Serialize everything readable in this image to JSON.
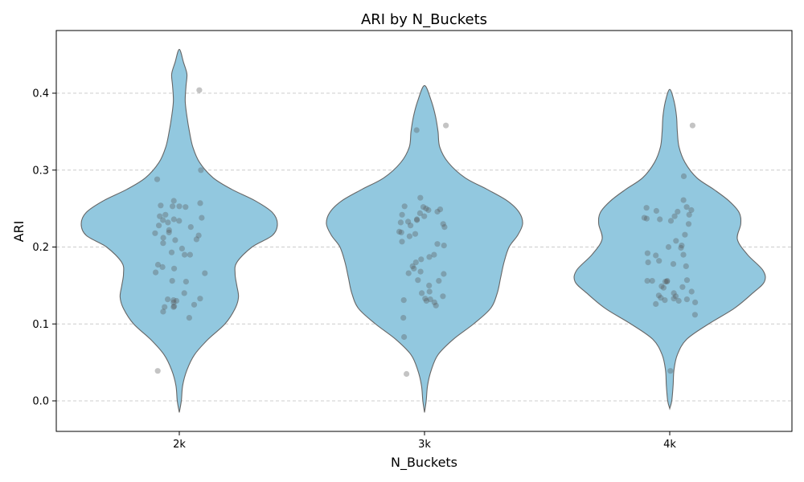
{
  "chart_data": {
    "type": "violin",
    "title": "ARI by N_Buckets",
    "xlabel": "N_Buckets",
    "ylabel": "ARI",
    "categories": [
      "2k",
      "3k",
      "4k"
    ],
    "ylim": [
      -0.04,
      0.48
    ],
    "yticks": [
      0.0,
      0.1,
      0.2,
      0.3,
      0.4
    ],
    "ytick_labels": [
      "0.0",
      "0.1",
      "0.2",
      "0.3",
      "0.4"
    ],
    "grid": "y-dashed",
    "colors": {
      "violin_fill": "#92c8df",
      "violin_edge": "#666666",
      "point": "#555555"
    },
    "violins": [
      {
        "category": "2k",
        "range": [
          -0.015,
          0.457
        ],
        "profile": [
          [
            -0.015,
            0.0
          ],
          [
            0.0,
            0.012
          ],
          [
            0.02,
            0.02
          ],
          [
            0.04,
            0.045
          ],
          [
            0.06,
            0.09
          ],
          [
            0.08,
            0.17
          ],
          [
            0.1,
            0.27
          ],
          [
            0.12,
            0.33
          ],
          [
            0.135,
            0.35
          ],
          [
            0.15,
            0.34
          ],
          [
            0.165,
            0.33
          ],
          [
            0.18,
            0.34
          ],
          [
            0.2,
            0.43
          ],
          [
            0.215,
            0.55
          ],
          [
            0.23,
            0.58
          ],
          [
            0.245,
            0.55
          ],
          [
            0.26,
            0.45
          ],
          [
            0.275,
            0.31
          ],
          [
            0.29,
            0.2
          ],
          [
            0.31,
            0.12
          ],
          [
            0.33,
            0.08
          ],
          [
            0.35,
            0.06
          ],
          [
            0.37,
            0.045
          ],
          [
            0.39,
            0.035
          ],
          [
            0.41,
            0.04
          ],
          [
            0.425,
            0.045
          ],
          [
            0.44,
            0.025
          ],
          [
            0.457,
            0.0
          ]
        ],
        "points": [
          0.404,
          0.3,
          0.288,
          0.26,
          0.257,
          0.254,
          0.253,
          0.253,
          0.252,
          0.242,
          0.24,
          0.238,
          0.236,
          0.235,
          0.234,
          0.232,
          0.228,
          0.226,
          0.222,
          0.219,
          0.218,
          0.215,
          0.212,
          0.21,
          0.209,
          0.205,
          0.198,
          0.193,
          0.19,
          0.19,
          0.177,
          0.174,
          0.172,
          0.167,
          0.166,
          0.156,
          0.155,
          0.14,
          0.133,
          0.132,
          0.131,
          0.13,
          0.128,
          0.125,
          0.123,
          0.122,
          0.122,
          0.116,
          0.108,
          0.039
        ]
      },
      {
        "category": "3k",
        "range": [
          -0.015,
          0.41
        ],
        "profile": [
          [
            -0.015,
            0.0
          ],
          [
            0.0,
            0.01
          ],
          [
            0.02,
            0.018
          ],
          [
            0.04,
            0.04
          ],
          [
            0.06,
            0.08
          ],
          [
            0.08,
            0.17
          ],
          [
            0.1,
            0.29
          ],
          [
            0.12,
            0.39
          ],
          [
            0.14,
            0.43
          ],
          [
            0.16,
            0.45
          ],
          [
            0.18,
            0.47
          ],
          [
            0.2,
            0.5
          ],
          [
            0.215,
            0.55
          ],
          [
            0.23,
            0.58
          ],
          [
            0.245,
            0.56
          ],
          [
            0.26,
            0.49
          ],
          [
            0.275,
            0.37
          ],
          [
            0.29,
            0.24
          ],
          [
            0.31,
            0.14
          ],
          [
            0.33,
            0.09
          ],
          [
            0.35,
            0.08
          ],
          [
            0.37,
            0.065
          ],
          [
            0.39,
            0.04
          ],
          [
            0.41,
            0.0
          ]
        ],
        "points": [
          0.358,
          0.352,
          0.264,
          0.253,
          0.252,
          0.25,
          0.249,
          0.248,
          0.246,
          0.244,
          0.242,
          0.24,
          0.236,
          0.235,
          0.233,
          0.232,
          0.23,
          0.228,
          0.226,
          0.22,
          0.219,
          0.217,
          0.214,
          0.207,
          0.204,
          0.202,
          0.19,
          0.187,
          0.184,
          0.18,
          0.175,
          0.172,
          0.168,
          0.166,
          0.165,
          0.157,
          0.156,
          0.15,
          0.142,
          0.14,
          0.136,
          0.133,
          0.132,
          0.131,
          0.13,
          0.128,
          0.124,
          0.108,
          0.083,
          0.035
        ]
      },
      {
        "category": "4k",
        "range": [
          -0.01,
          0.405
        ],
        "profile": [
          [
            -0.01,
            0.0
          ],
          [
            0.0,
            0.012
          ],
          [
            0.02,
            0.02
          ],
          [
            0.04,
            0.025
          ],
          [
            0.06,
            0.045
          ],
          [
            0.08,
            0.1
          ],
          [
            0.1,
            0.23
          ],
          [
            0.12,
            0.38
          ],
          [
            0.14,
            0.49
          ],
          [
            0.155,
            0.56
          ],
          [
            0.17,
            0.55
          ],
          [
            0.19,
            0.46
          ],
          [
            0.21,
            0.4
          ],
          [
            0.23,
            0.42
          ],
          [
            0.245,
            0.41
          ],
          [
            0.26,
            0.35
          ],
          [
            0.275,
            0.26
          ],
          [
            0.29,
            0.16
          ],
          [
            0.31,
            0.09
          ],
          [
            0.33,
            0.055
          ],
          [
            0.35,
            0.045
          ],
          [
            0.37,
            0.04
          ],
          [
            0.39,
            0.025
          ],
          [
            0.405,
            0.0
          ]
        ],
        "points": [
          0.358,
          0.292,
          0.261,
          0.252,
          0.251,
          0.248,
          0.247,
          0.246,
          0.242,
          0.24,
          0.238,
          0.237,
          0.236,
          0.234,
          0.23,
          0.216,
          0.208,
          0.202,
          0.2,
          0.199,
          0.192,
          0.19,
          0.189,
          0.182,
          0.18,
          0.178,
          0.175,
          0.157,
          0.156,
          0.156,
          0.156,
          0.155,
          0.155,
          0.149,
          0.148,
          0.147,
          0.142,
          0.14,
          0.137,
          0.136,
          0.134,
          0.133,
          0.132,
          0.131,
          0.13,
          0.128,
          0.126,
          0.112,
          0.039
        ]
      }
    ]
  }
}
